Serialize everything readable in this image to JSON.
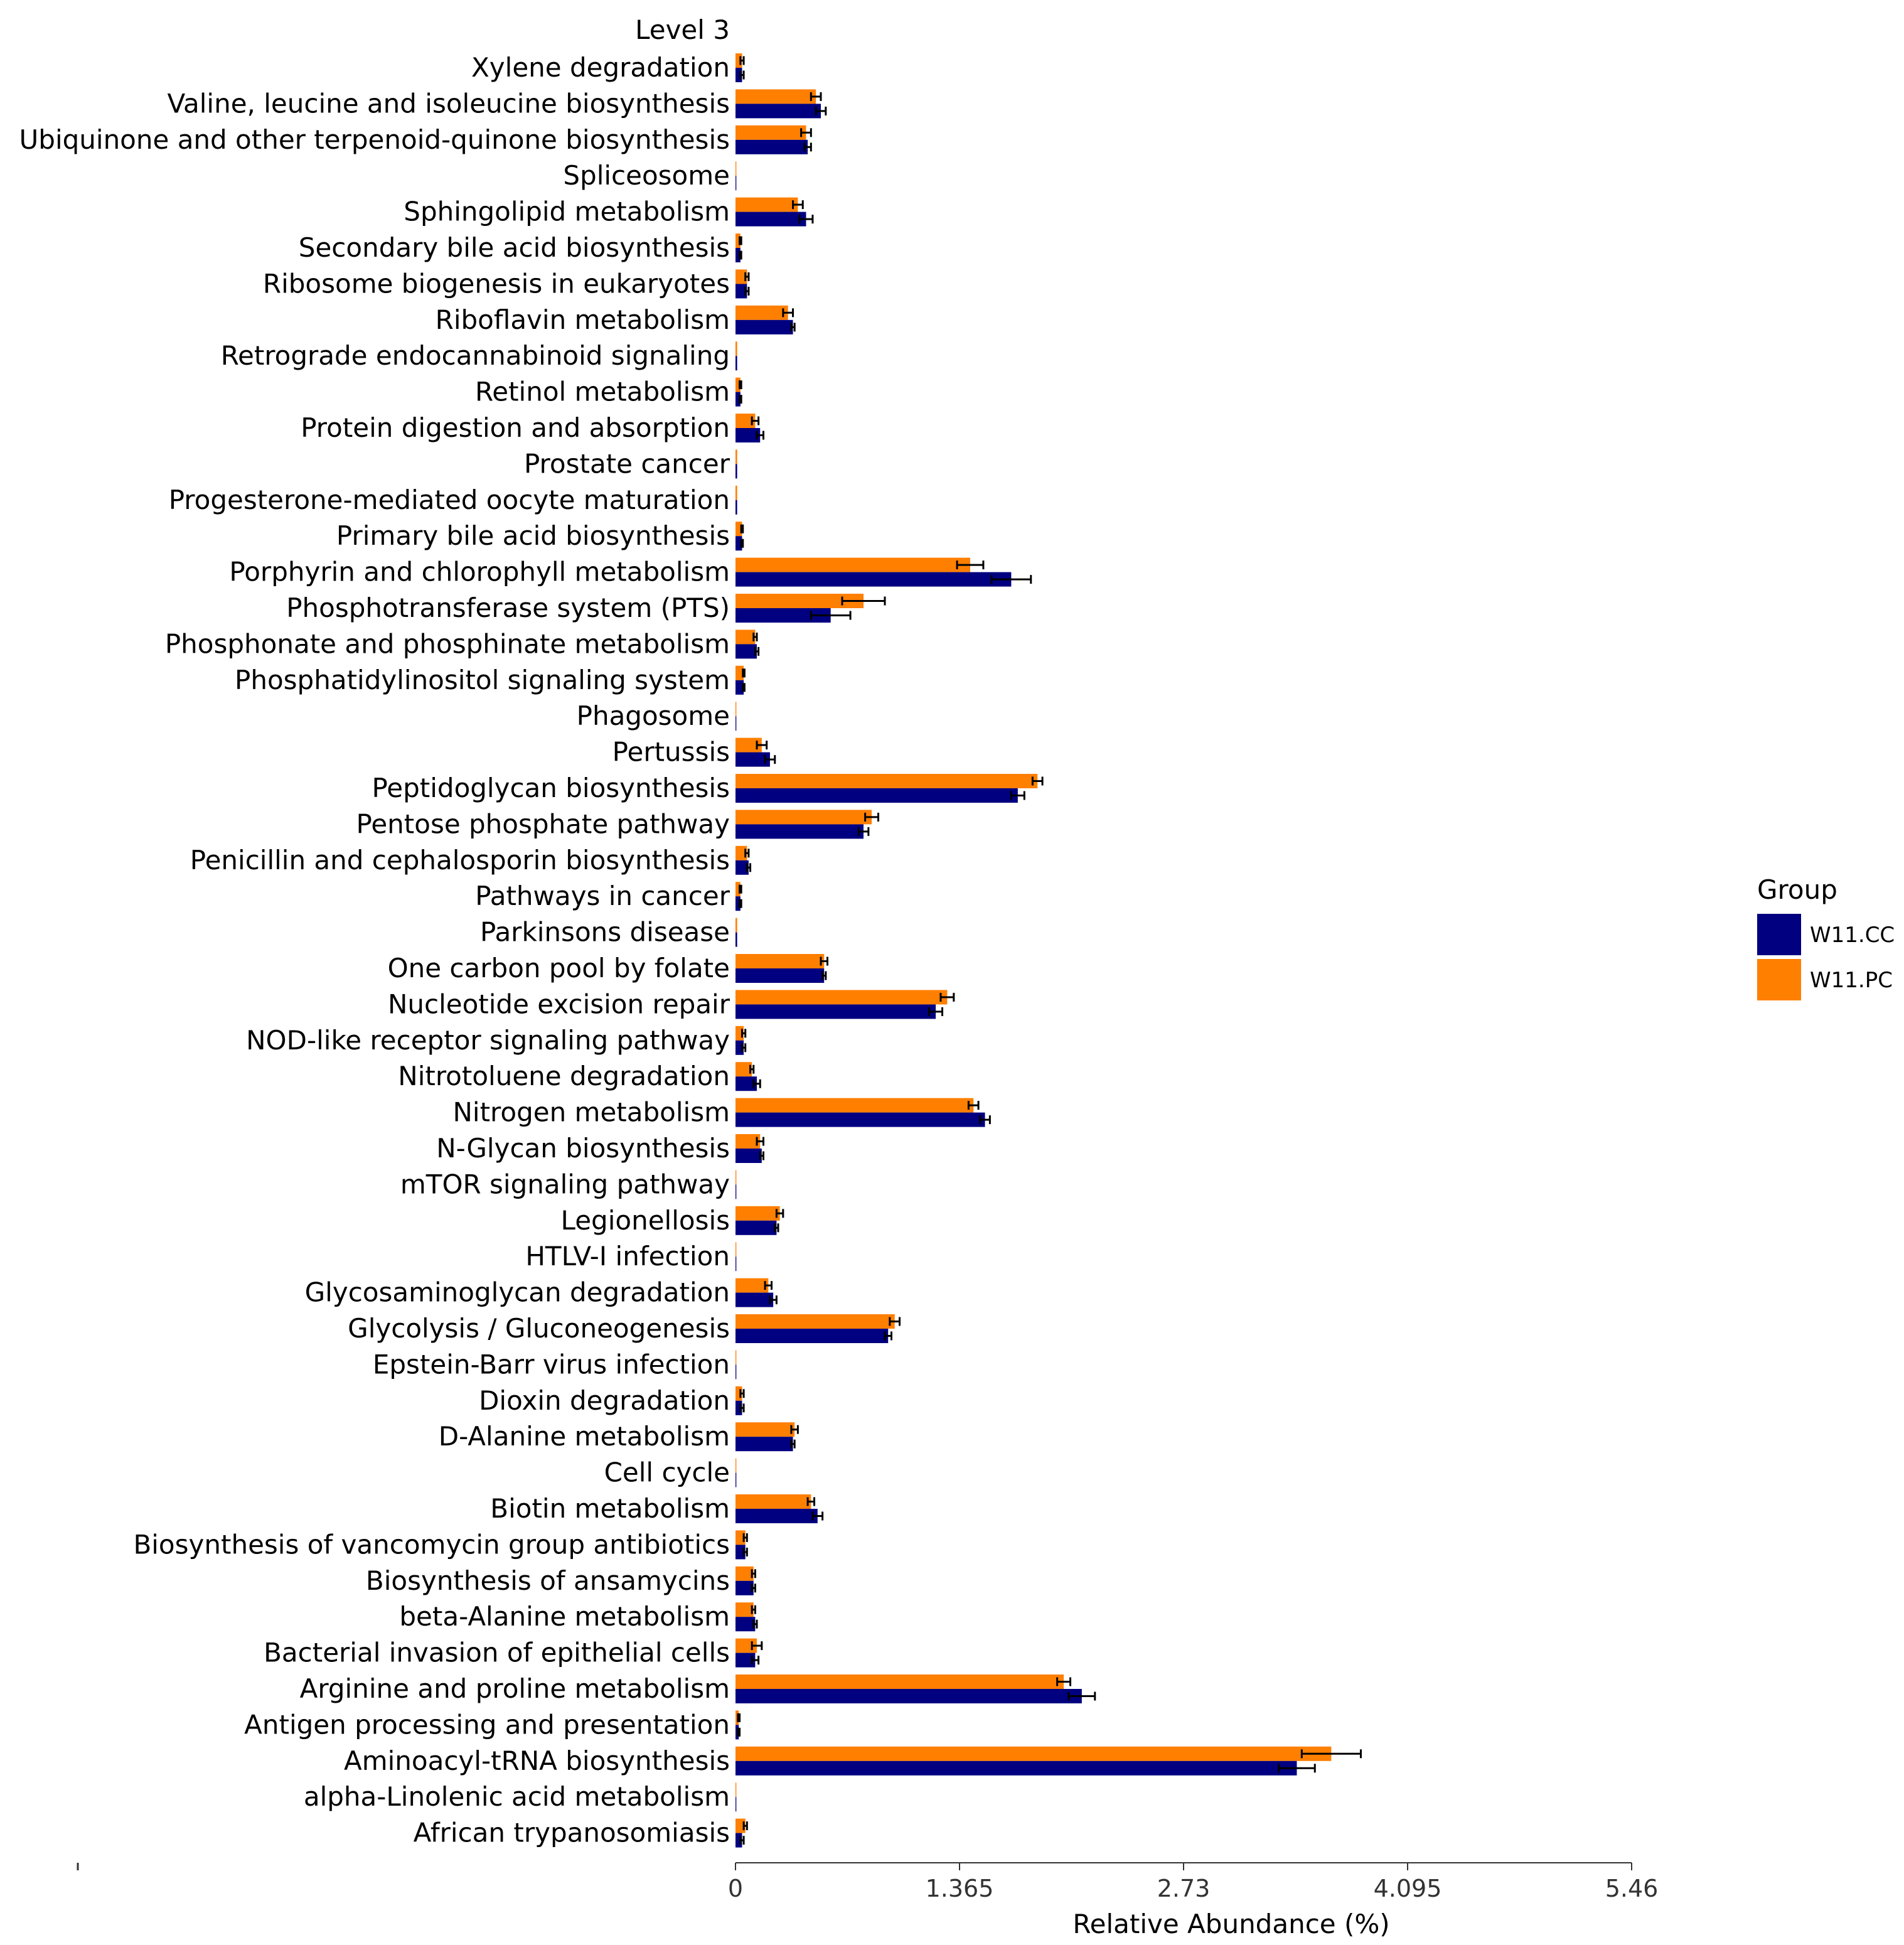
{
  "chart_data": {
    "type": "bar",
    "orientation": "horizontal",
    "column_title": "Level 3",
    "xlabel": "Relative Abundance (%)",
    "xlim": [
      0,
      5.46
    ],
    "xticks": [
      "0",
      "1.365",
      "2.73",
      "4.095",
      "5.46"
    ],
    "xtick_values": [
      0,
      1.365,
      2.73,
      4.095,
      5.46
    ],
    "legend": {
      "title": "Group",
      "position": "right"
    },
    "categories": [
      "Xylene degradation",
      "Valine, leucine and isoleucine biosynthesis",
      "Ubiquinone and other terpenoid-quinone biosynthesis",
      "Spliceosome",
      "Sphingolipid metabolism",
      "Secondary bile acid biosynthesis",
      "Ribosome biogenesis in eukaryotes",
      "Riboflavin metabolism",
      "Retrograde endocannabinoid signaling",
      "Retinol metabolism",
      "Protein digestion and absorption",
      "Prostate cancer",
      "Progesterone-mediated oocyte maturation",
      "Primary bile acid biosynthesis",
      "Porphyrin and chlorophyll metabolism",
      "Phosphotransferase system (PTS)",
      "Phosphonate and phosphinate metabolism",
      "Phosphatidylinositol signaling system",
      "Phagosome",
      "Pertussis",
      "Peptidoglycan biosynthesis",
      "Pentose phosphate pathway",
      "Penicillin and cephalosporin biosynthesis",
      "Pathways in cancer",
      "Parkinsons disease",
      "One carbon pool by folate",
      "Nucleotide excision repair",
      "NOD-like receptor signaling pathway",
      "Nitrotoluene degradation",
      "Nitrogen metabolism",
      "N-Glycan biosynthesis",
      "mTOR signaling pathway",
      "Legionellosis",
      "HTLV-I infection",
      "Glycosaminoglycan degradation",
      "Glycolysis / Gluconeogenesis",
      "Epstein-Barr virus infection",
      "Dioxin degradation",
      "D-Alanine metabolism",
      "Cell cycle",
      "Biotin metabolism",
      "Biosynthesis of vancomycin group antibiotics",
      "Biosynthesis of ansamycins",
      "beta-Alanine metabolism",
      "Bacterial invasion of epithelial cells",
      "Arginine and proline metabolism",
      "Antigen processing and presentation",
      "Aminoacyl-tRNA biosynthesis",
      "alpha-Linolenic acid metabolism",
      "African trypanosomiasis"
    ],
    "series": [
      {
        "name": "W11.PC",
        "color": "#FF7F00",
        "values": [
          0.04,
          0.49,
          0.43,
          0.005,
          0.38,
          0.03,
          0.07,
          0.32,
          0.01,
          0.03,
          0.12,
          0.01,
          0.01,
          0.04,
          1.43,
          0.78,
          0.12,
          0.05,
          0.005,
          0.16,
          1.84,
          0.83,
          0.07,
          0.03,
          0.01,
          0.54,
          1.29,
          0.05,
          0.1,
          1.45,
          0.15,
          0.005,
          0.27,
          0.005,
          0.2,
          0.97,
          0.005,
          0.04,
          0.36,
          0.005,
          0.46,
          0.06,
          0.11,
          0.11,
          0.13,
          2.0,
          0.02,
          3.63,
          0.005,
          0.06
        ],
        "errors": [
          0.01,
          0.03,
          0.03,
          0.0,
          0.03,
          0.005,
          0.01,
          0.03,
          0.0,
          0.005,
          0.02,
          0.0,
          0.0,
          0.005,
          0.08,
          0.13,
          0.01,
          0.005,
          0.0,
          0.03,
          0.03,
          0.04,
          0.01,
          0.005,
          0.0,
          0.02,
          0.04,
          0.01,
          0.01,
          0.03,
          0.02,
          0.0,
          0.02,
          0.0,
          0.02,
          0.03,
          0.0,
          0.01,
          0.02,
          0.0,
          0.02,
          0.01,
          0.01,
          0.01,
          0.03,
          0.04,
          0.005,
          0.18,
          0.0,
          0.01
        ]
      },
      {
        "name": "W11.CC",
        "color": "#000080",
        "values": [
          0.04,
          0.52,
          0.44,
          0.005,
          0.43,
          0.03,
          0.07,
          0.35,
          0.01,
          0.03,
          0.15,
          0.01,
          0.01,
          0.04,
          1.68,
          0.58,
          0.13,
          0.05,
          0.005,
          0.21,
          1.72,
          0.78,
          0.08,
          0.03,
          0.01,
          0.54,
          1.22,
          0.05,
          0.13,
          1.52,
          0.16,
          0.005,
          0.25,
          0.005,
          0.23,
          0.93,
          0.005,
          0.04,
          0.35,
          0.005,
          0.5,
          0.06,
          0.11,
          0.12,
          0.12,
          2.11,
          0.02,
          3.42,
          0.005,
          0.04
        ],
        "errors": [
          0.01,
          0.03,
          0.02,
          0.0,
          0.04,
          0.005,
          0.01,
          0.01,
          0.0,
          0.005,
          0.02,
          0.0,
          0.0,
          0.005,
          0.12,
          0.12,
          0.01,
          0.005,
          0.0,
          0.03,
          0.04,
          0.03,
          0.01,
          0.005,
          0.0,
          0.01,
          0.04,
          0.01,
          0.02,
          0.03,
          0.01,
          0.0,
          0.01,
          0.0,
          0.02,
          0.02,
          0.0,
          0.01,
          0.01,
          0.0,
          0.03,
          0.01,
          0.01,
          0.01,
          0.02,
          0.08,
          0.005,
          0.11,
          0.0,
          0.01
        ]
      }
    ],
    "legend_order": [
      "W11.CC",
      "W11.PC"
    ]
  }
}
